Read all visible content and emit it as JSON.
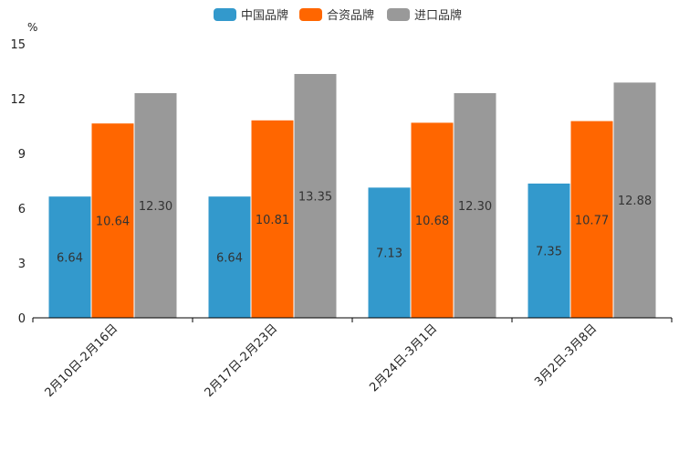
{
  "chart_data": {
    "type": "bar",
    "title": "",
    "xlabel": "",
    "ylabel": "%",
    "ylim": [
      0,
      15
    ],
    "yticks": [
      0,
      3,
      6,
      9,
      12,
      15
    ],
    "grid": false,
    "legend_position": "top-center",
    "categories": [
      "2月10日-2月16日",
      "2月17日-2月23日",
      "2月24日-3月1日",
      "3月2日-3月8日"
    ],
    "series": [
      {
        "name": "中国品牌",
        "color": "#3399cc",
        "values": [
          6.64,
          6.64,
          7.13,
          7.35
        ]
      },
      {
        "name": "合资品牌",
        "color": "#ff6600",
        "values": [
          10.64,
          10.81,
          10.68,
          10.77
        ]
      },
      {
        "name": "进口品牌",
        "color": "#999999",
        "values": [
          12.3,
          13.35,
          12.3,
          12.88
        ]
      }
    ]
  }
}
